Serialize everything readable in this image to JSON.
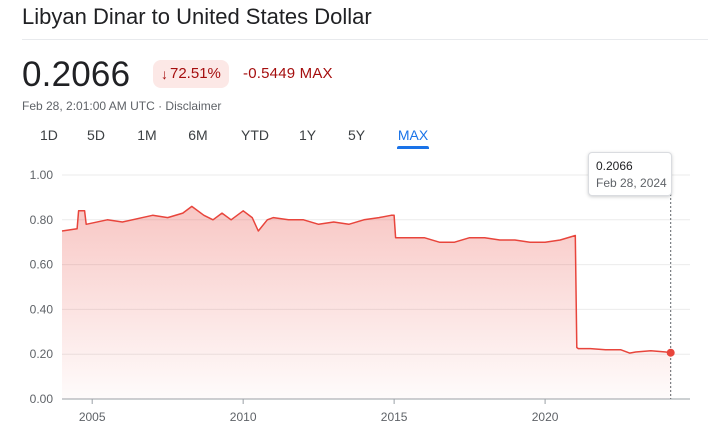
{
  "header": {
    "title": "Libyan Dinar to United States Dollar"
  },
  "quote": {
    "price": "0.2066",
    "change_pct": "72.51%",
    "change_arrow_icon": "arrow-down-icon",
    "change_abs": "-0.5449 MAX",
    "timestamp": "Feb 28, 2:01:00 AM UTC",
    "separator": " · ",
    "disclaimer": "Disclaimer",
    "negative_color": "#a50e0e",
    "negative_bg": "#fce8e6"
  },
  "range_tabs": [
    {
      "label": "1D"
    },
    {
      "label": "5D"
    },
    {
      "label": "1M"
    },
    {
      "label": "6M"
    },
    {
      "label": "YTD"
    },
    {
      "label": "1Y"
    },
    {
      "label": "5Y"
    },
    {
      "label": "MAX",
      "selected": true
    }
  ],
  "tooltip": {
    "value": "0.2066",
    "date": "Feb 28, 2024"
  },
  "chart_data": {
    "type": "area",
    "line_color": "#e8453c",
    "ylim": [
      0,
      1.0
    ],
    "y_ticks": [
      "0.00",
      "0.20",
      "0.40",
      "0.60",
      "0.80",
      "1.00"
    ],
    "x_ticks": [
      "2005",
      "2010",
      "2015",
      "2020"
    ],
    "xlim": [
      2004.0,
      2024.17
    ],
    "grid": "horizontal",
    "series": [
      {
        "x": [
          2004.0,
          2004.5,
          2004.55,
          2004.75,
          2004.8,
          2005.5,
          2006.0,
          2007.0,
          2007.5,
          2008.0,
          2008.3,
          2008.7,
          2009.0,
          2009.3,
          2009.6,
          2010.0,
          2010.3,
          2010.5,
          2010.8,
          2011.0,
          2011.5,
          2012.0,
          2012.5,
          2013.0,
          2013.5,
          2014.0,
          2014.5,
          2014.9,
          2015.0,
          2015.05,
          2015.5,
          2016.0,
          2016.5,
          2017.0,
          2017.5,
          2018.0,
          2018.5,
          2019.0,
          2019.5,
          2020.0,
          2020.5,
          2021.0,
          2021.05,
          2021.1,
          2021.5,
          2022.0,
          2022.5,
          2022.8,
          2023.0,
          2023.5,
          2024.0,
          2024.16
        ],
        "y": [
          0.75,
          0.76,
          0.84,
          0.84,
          0.78,
          0.8,
          0.79,
          0.82,
          0.81,
          0.83,
          0.86,
          0.82,
          0.8,
          0.83,
          0.8,
          0.84,
          0.81,
          0.75,
          0.8,
          0.81,
          0.8,
          0.8,
          0.78,
          0.79,
          0.78,
          0.8,
          0.81,
          0.82,
          0.82,
          0.72,
          0.72,
          0.72,
          0.7,
          0.7,
          0.72,
          0.72,
          0.71,
          0.71,
          0.7,
          0.7,
          0.71,
          0.73,
          0.23,
          0.225,
          0.225,
          0.22,
          0.22,
          0.205,
          0.21,
          0.215,
          0.21,
          0.2066
        ]
      }
    ]
  }
}
